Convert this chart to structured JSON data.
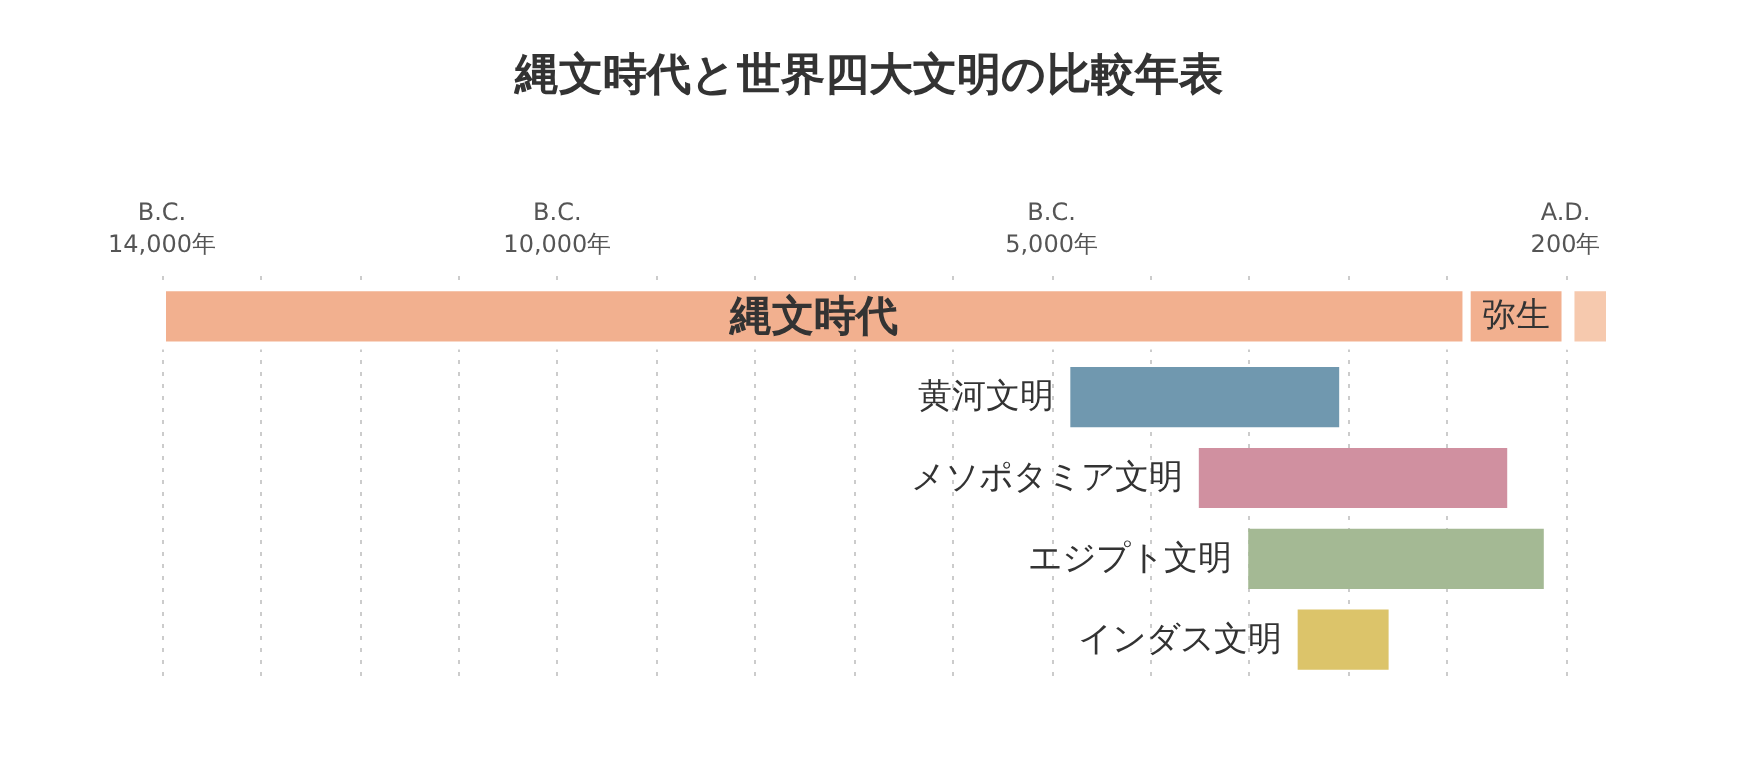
{
  "chart_data": {
    "type": "bar",
    "orientation": "horizontal",
    "title": "縄文時代と世界四大文明の比較年表",
    "categories": [
      null,
      null,
      null,
      null,
      null
    ],
    "series": [
      {
        "name": "縄文時代",
        "color": "#f2b08f",
        "values": [
          13200,
          null,
          null,
          null,
          null
        ],
        "base": [
          -14000,
          null,
          null,
          null,
          null
        ]
      },
      {
        "name": "弥生",
        "color": "#f2b08f",
        "values": [
          1000,
          null,
          null,
          null,
          null
        ],
        "base": [
          -800,
          null,
          null,
          null,
          null
        ]
      },
      {
        "color": "#f6c9ae",
        "values": [
          400,
          null,
          null,
          null,
          null
        ],
        "base": [
          250,
          null,
          null,
          null,
          null
        ]
      },
      {
        "name": "黄河文明",
        "color": "#7098af",
        "values": [
          null,
          2700,
          null,
          null,
          null
        ],
        "base": [
          null,
          -4800,
          null,
          null,
          null
        ]
      },
      {
        "name": "メソポタミア文明",
        "color": "#d090a0",
        "values": [
          null,
          null,
          3100,
          null,
          null
        ],
        "base": [
          null,
          null,
          -3500,
          null,
          null
        ]
      },
      {
        "name": "エジプト文明",
        "color": "#a4b994",
        "values": [
          null,
          null,
          null,
          2970,
          null
        ],
        "base": [
          null,
          null,
          null,
          -3000,
          null
        ]
      },
      {
        "name": "インダス文明",
        "color": "#dcc46a",
        "values": [
          null,
          null,
          null,
          null,
          900
        ],
        "base": [
          null,
          null,
          null,
          null,
          -2500
        ]
      }
    ],
    "xlim": [
      -14000,
      650
    ],
    "xticks": [
      {
        "value": -14000,
        "label": "B.C.\n14,000年"
      },
      {
        "value": -13000,
        "label": null
      },
      {
        "value": -12000,
        "label": null
      },
      {
        "value": -11000,
        "label": null
      },
      {
        "value": -10000,
        "label": "B.C.\n10,000年"
      },
      {
        "value": -9000,
        "label": null
      },
      {
        "value": -8000,
        "label": null
      },
      {
        "value": -7000,
        "label": null
      },
      {
        "value": -6000,
        "label": null
      },
      {
        "value": -5000,
        "label": "B.C.\n5,000年"
      },
      {
        "value": -4000,
        "label": null
      },
      {
        "value": -3000,
        "label": null
      },
      {
        "value": -2000,
        "label": null
      },
      {
        "value": -1000,
        "label": null
      },
      {
        "value": 200,
        "label": "A.D.\n200年"
      }
    ],
    "grid": "x",
    "tick_labels": "x"
  }
}
